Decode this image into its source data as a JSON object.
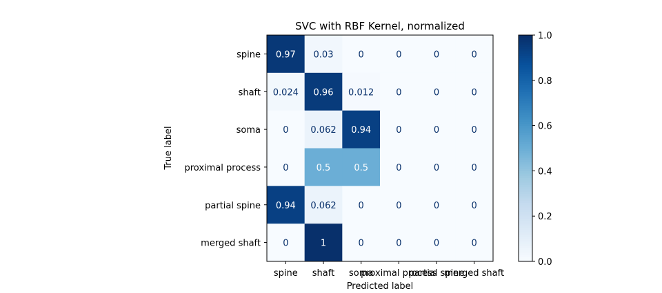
{
  "chart_data": {
    "type": "heatmap",
    "title": "SVC with RBF Kernel, normalized",
    "xlabel": "Predicted label",
    "ylabel": "True label",
    "x_categories": [
      "spine",
      "shaft",
      "soma",
      "proximal process",
      "partial spine",
      "merged shaft"
    ],
    "y_categories": [
      "spine",
      "shaft",
      "soma",
      "proximal process",
      "partial spine",
      "merged shaft"
    ],
    "values": [
      [
        0.97,
        0.03,
        0,
        0,
        0,
        0
      ],
      [
        0.024,
        0.96,
        0.012,
        0,
        0,
        0
      ],
      [
        0,
        0.062,
        0.94,
        0,
        0,
        0
      ],
      [
        0,
        0.5,
        0.5,
        0,
        0,
        0
      ],
      [
        0.94,
        0.062,
        0,
        0,
        0,
        0
      ],
      [
        0,
        1,
        0,
        0,
        0,
        0
      ]
    ],
    "colormap": "Blues",
    "colorbar": {
      "range": [
        0.0,
        1.0
      ],
      "ticks": [
        "0.0",
        "0.2",
        "0.4",
        "0.6",
        "0.8",
        "1.0"
      ]
    },
    "grid": false
  }
}
